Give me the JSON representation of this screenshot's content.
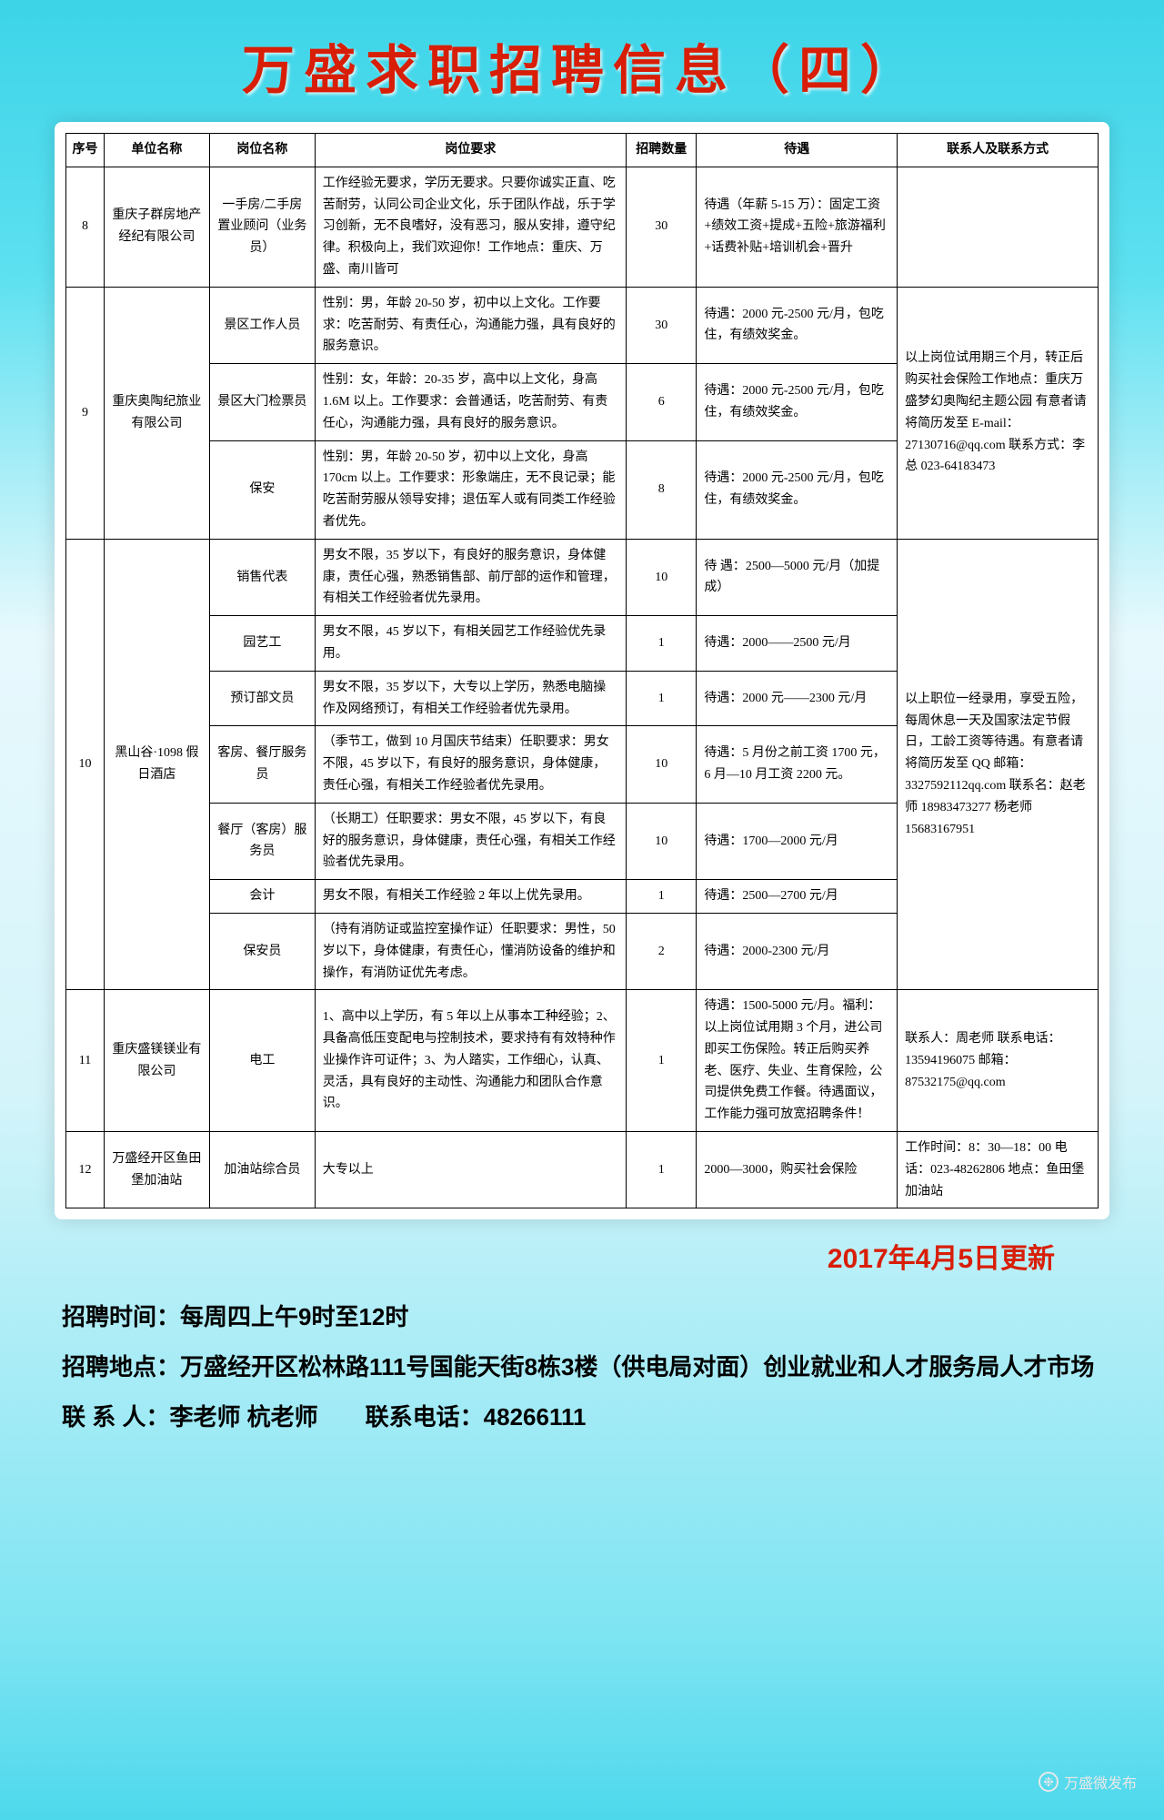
{
  "title": "万盛求职招聘信息（四）",
  "columns": [
    "序号",
    "单位名称",
    "岗位名称",
    "岗位要求",
    "招聘数量",
    "待遇",
    "联系人及联系方式"
  ],
  "rows": [
    {
      "no": "8",
      "company": "重庆子群房地产经纪有限公司",
      "contact": "",
      "positions": [
        {
          "pos": "一手房/二手房 置业顾问（业务员）",
          "req": "工作经验无要求，学历无要求。只要你诚实正直、吃苦耐劳，认同公司企业文化，乐于团队作战，乐于学习创新，无不良嗜好，没有恶习，服从安排，遵守纪律。积极向上，我们欢迎你！工作地点：重庆、万盛、南川皆可",
          "num": "30",
          "treat": "待遇（年薪 5-15 万）：固定工资+绩效工资+提成+五险+旅游福利+话费补贴+培训机会+晋升"
        }
      ]
    },
    {
      "no": "9",
      "company": "重庆奥陶纪旅业有限公司",
      "contact": "以上岗位试用期三个月，转正后购买社会保险工作地点：重庆万盛梦幻奥陶纪主题公园 有意者请将简历发至 E-mail：27130716@qq.com 联系方式：李总 023-64183473",
      "positions": [
        {
          "pos": "景区工作人员",
          "req": "性别：男，年龄 20-50 岁，初中以上文化。工作要求：吃苦耐劳、有责任心，沟通能力强，具有良好的服务意识。",
          "num": "30",
          "treat": "待遇：2000 元-2500 元/月，包吃住，有绩效奖金。"
        },
        {
          "pos": "景区大门检票员",
          "req": "性别：女，年龄：20-35 岁，高中以上文化，身高 1.6M 以上。工作要求：会普通话，吃苦耐劳、有责任心，沟通能力强，具有良好的服务意识。",
          "num": "6",
          "treat": "待遇：2000 元-2500 元/月，包吃住，有绩效奖金。"
        },
        {
          "pos": "保安",
          "req": "性别：男，年龄 20-50 岁，初中以上文化，身高 170cm 以上。工作要求：形象端庄，无不良记录；能吃苦耐劳服从领导安排；退伍军人或有同类工作经验者优先。",
          "num": "8",
          "treat": "待遇：2000 元-2500 元/月，包吃住，有绩效奖金。"
        }
      ]
    },
    {
      "no": "10",
      "company": "黑山谷·1098 假日酒店",
      "contact": "以上职位一经录用，享受五险，每周休息一天及国家法定节假日，工龄工资等待遇。有意者请将简历发至 QQ 邮箱：3327592112qq.com 联系名：赵老师 18983473277 杨老师 15683167951",
      "positions": [
        {
          "pos": "销售代表",
          "req": "男女不限，35 岁以下，有良好的服务意识，身体健康，责任心强，熟悉销售部、前厅部的运作和管理，有相关工作经验者优先录用。",
          "num": "10",
          "treat": "待 遇：2500—5000 元/月（加提成）"
        },
        {
          "pos": "园艺工",
          "req": "男女不限，45 岁以下，有相关园艺工作经验优先录用。",
          "num": "1",
          "treat": "待遇：2000——2500 元/月"
        },
        {
          "pos": "预订部文员",
          "req": "男女不限，35 岁以下，大专以上学历，熟悉电脑操作及网络预订，有相关工作经验者优先录用。",
          "num": "1",
          "treat": "待遇：2000 元——2300 元/月"
        },
        {
          "pos": "客房、餐厅服务员",
          "req": "（季节工，做到 10 月国庆节结束）任职要求：男女不限，45 岁以下，有良好的服务意识，身体健康，责任心强，有相关工作经验者优先录用。",
          "num": "10",
          "treat": "待遇：5 月份之前工资 1700 元，6 月—10 月工资 2200 元。"
        },
        {
          "pos": "餐厅（客房）服务员",
          "req": "（长期工）任职要求：男女不限，45 岁以下，有良好的服务意识，身体健康，责任心强，有相关工作经验者优先录用。",
          "num": "10",
          "treat": "待遇：1700—2000 元/月"
        },
        {
          "pos": "会计",
          "req": "男女不限，有相关工作经验 2 年以上优先录用。",
          "num": "1",
          "treat": "待遇：2500—2700 元/月"
        },
        {
          "pos": "保安员",
          "req": "（持有消防证或监控室操作证）任职要求：男性，50 岁以下，身体健康，有责任心，懂消防设备的维护和操作，有消防证优先考虑。",
          "num": "2",
          "treat": "待遇：2000-2300 元/月"
        }
      ]
    },
    {
      "no": "11",
      "company": "重庆盛镁镁业有限公司",
      "contact": "联系人：周老师 联系电话：13594196075 邮箱：87532175@qq.com",
      "positions": [
        {
          "pos": "电工",
          "req": "1、高中以上学历，有 5 年以上从事本工种经验；2、具备高低压变配电与控制技术，要求持有有效特种作业操作许可证件；3、为人踏实，工作细心，认真、灵活，具有良好的主动性、沟通能力和团队合作意识。",
          "num": "1",
          "treat": "待遇：1500-5000 元/月。福利：以上岗位试用期 3 个月，进公司即买工伤保险。转正后购买养老、医疗、失业、生育保险，公司提供免费工作餐。待遇面议，工作能力强可放宽招聘条件！"
        }
      ]
    },
    {
      "no": "12",
      "company": "万盛经开区鱼田堡加油站",
      "contact": "工作时间：8：30—18：00 电话：023-48262806 地点：鱼田堡加油站",
      "positions": [
        {
          "pos": "加油站综合员",
          "req": "大专以上",
          "num": "1",
          "treat": "2000—3000，购买社会保险"
        }
      ]
    }
  ],
  "update": "2017年4月5日更新",
  "footer": {
    "l1": "招聘时间：每周四上午9时至12时",
    "l2": "招聘地点：万盛经开区松林路111号国能天街8栋3楼（供电局对面）创业就业和人才服务局人才市场",
    "l3": "联 系 人：李老师 杭老师　　联系电话：48266111"
  },
  "watermark": "万盛微发布"
}
